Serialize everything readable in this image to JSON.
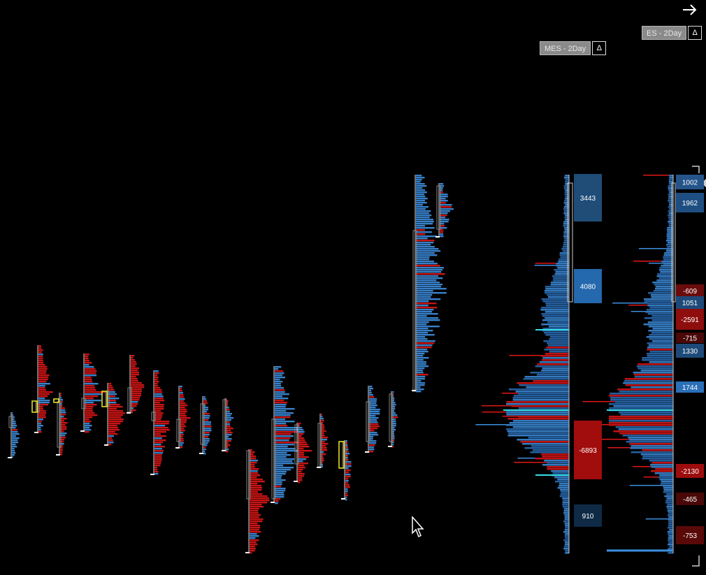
{
  "topbar": {
    "arrow_icon": "arrow-right-icon"
  },
  "profiles_tags": [
    {
      "label": "MES - 2Day",
      "delta": "Δ"
    },
    {
      "label": "ES - 2Day",
      "delta": "Δ"
    }
  ],
  "mes_boxes": [
    {
      "value": "3443",
      "color": "#1f4d78"
    },
    {
      "value": "4080",
      "color": "#2468ad"
    },
    {
      "value": "-6893",
      "color": "#a10c0c"
    },
    {
      "value": "910",
      "color": "#0f2a45"
    }
  ],
  "es_boxes": [
    {
      "value": "1002",
      "color": "#24548a"
    },
    {
      "value": "1962",
      "color": "#1f4f82"
    },
    {
      "value": "-609",
      "color": "#6a0c0c"
    },
    {
      "value": "1051",
      "color": "#1e4a7a"
    },
    {
      "value": "-2591",
      "color": "#8e0d0d"
    },
    {
      "value": "-715",
      "color": "#4a0808"
    },
    {
      "value": "1330",
      "color": "#1d4a78"
    },
    {
      "value": "1744",
      "color": "#2a6fb8"
    },
    {
      "value": "-2130",
      "color": "#9d0d0d"
    },
    {
      "value": "-465",
      "color": "#4a0808"
    },
    {
      "value": "-753",
      "color": "#5a0909"
    }
  ],
  "colors": {
    "buy": "#3d8fe0",
    "sell": "#e01616",
    "poc": "#36e0e8",
    "value_area_marker": "#f0ea2a"
  }
}
